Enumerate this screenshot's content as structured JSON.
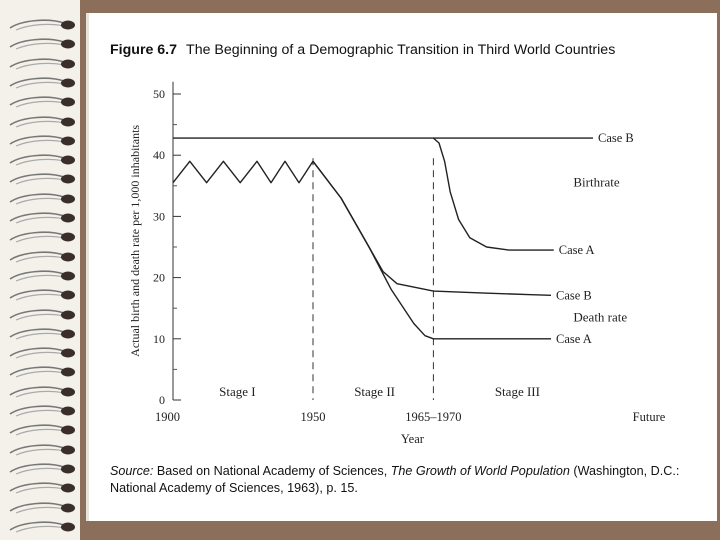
{
  "slide": {
    "figure_number": "Figure 6.7",
    "figure_title": "The Beginning of a Demographic Transition in Third World Countries",
    "source_label": "Source:",
    "source_text_1": " Based on National Academy of Sciences, ",
    "source_book": "The Growth of World Population",
    "source_text_2": " (Washington, D.C.: National Academy of Sciences, 1963), p. 15."
  },
  "colors": {
    "background": "#8b6f5a",
    "paper": "#ffffff",
    "ink": "#222222"
  },
  "chart_data": {
    "type": "line",
    "title": "The Beginning of a Demographic Transition in Third World Countries",
    "xlabel": "Year",
    "ylabel": "Actual birth and death rate per 1,000 inhabitants",
    "ylim": [
      0,
      52
    ],
    "yticks": [
      0,
      10,
      20,
      30,
      40,
      50
    ],
    "x_ticks": [
      {
        "value": 0,
        "label": "1900"
      },
      {
        "value": 50,
        "label": "1950"
      },
      {
        "value": 93,
        "label": "1965–1970"
      },
      {
        "value": 170,
        "label": "Future"
      }
    ],
    "stage_dividers": [
      50,
      93
    ],
    "stages": [
      {
        "label": "Stage I",
        "x": 23
      },
      {
        "label": "Stage II",
        "x": 72
      },
      {
        "label": "Stage III",
        "x": 123
      }
    ],
    "category_labels": [
      {
        "text": "Birthrate",
        "x": 143,
        "y": 35.5
      },
      {
        "text": "Death rate",
        "x": 143,
        "y": 13.5
      }
    ],
    "series": [
      {
        "name": "Birthrate Case B",
        "label": "Case B",
        "x": [
          0,
          50,
          93,
          150
        ],
        "y": [
          42.8,
          42.8,
          42.8,
          42.8
        ]
      },
      {
        "name": "Birthrate Case A",
        "label": "Case A",
        "x": [
          93,
          95,
          97,
          99,
          102,
          106,
          112,
          120,
          130,
          136
        ],
        "y": [
          42.8,
          42,
          39,
          34,
          29.5,
          26.5,
          25,
          24.5,
          24.5,
          24.5
        ]
      },
      {
        "name": "Death rate Case B",
        "label": "Case B",
        "x": [
          50,
          60,
          70,
          75,
          80,
          93,
          110,
          128,
          135
        ],
        "y": [
          39,
          33,
          25,
          21,
          19,
          17.8,
          17.5,
          17.2,
          17.1
        ]
      },
      {
        "name": "Death rate Case A",
        "label": "Case A",
        "x": [
          50,
          60,
          70,
          78,
          86,
          90,
          93,
          110,
          135
        ],
        "y": [
          39,
          33,
          25,
          18,
          12.5,
          10.5,
          10,
          10,
          10
        ]
      },
      {
        "name": "Early fluctuation",
        "label": "",
        "x": [
          0,
          6,
          12,
          18,
          24,
          30,
          35,
          40,
          45,
          50
        ],
        "y": [
          35.5,
          39,
          35.5,
          39,
          35.5,
          39,
          35.5,
          39,
          35.5,
          39
        ]
      }
    ]
  }
}
